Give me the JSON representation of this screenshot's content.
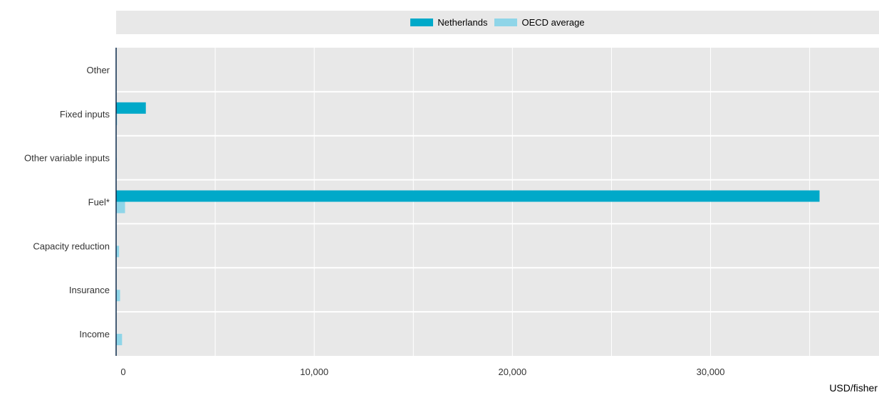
{
  "title": "",
  "legend": {
    "position": "top",
    "items": [
      {
        "label": "Netherlands",
        "color": "#00a9c9"
      },
      {
        "label": "OECD average",
        "color": "#8fd5e8"
      }
    ]
  },
  "chart_data": {
    "type": "bar",
    "orientation": "horizontal",
    "categories": [
      "Other",
      "Fixed inputs",
      "Other variable inputs",
      "Fuel*",
      "Capacity reduction",
      "Insurance",
      "Income"
    ],
    "series": [
      {
        "name": "Netherlands",
        "color": "#00a9c9",
        "values": [
          0,
          1500,
          0,
          35500,
          0,
          0,
          0
        ]
      },
      {
        "name": "OECD average",
        "color": "#8fd5e8",
        "values": [
          0,
          50,
          30,
          450,
          150,
          200,
          300
        ]
      }
    ],
    "xlim": [
      0,
      38500
    ],
    "xticks": [
      0,
      10000,
      20000,
      30000
    ],
    "xtick_labels": [
      "0",
      "10,000",
      "20,000",
      "30,000"
    ],
    "xlabel": "USD/fisher",
    "grid": true
  }
}
